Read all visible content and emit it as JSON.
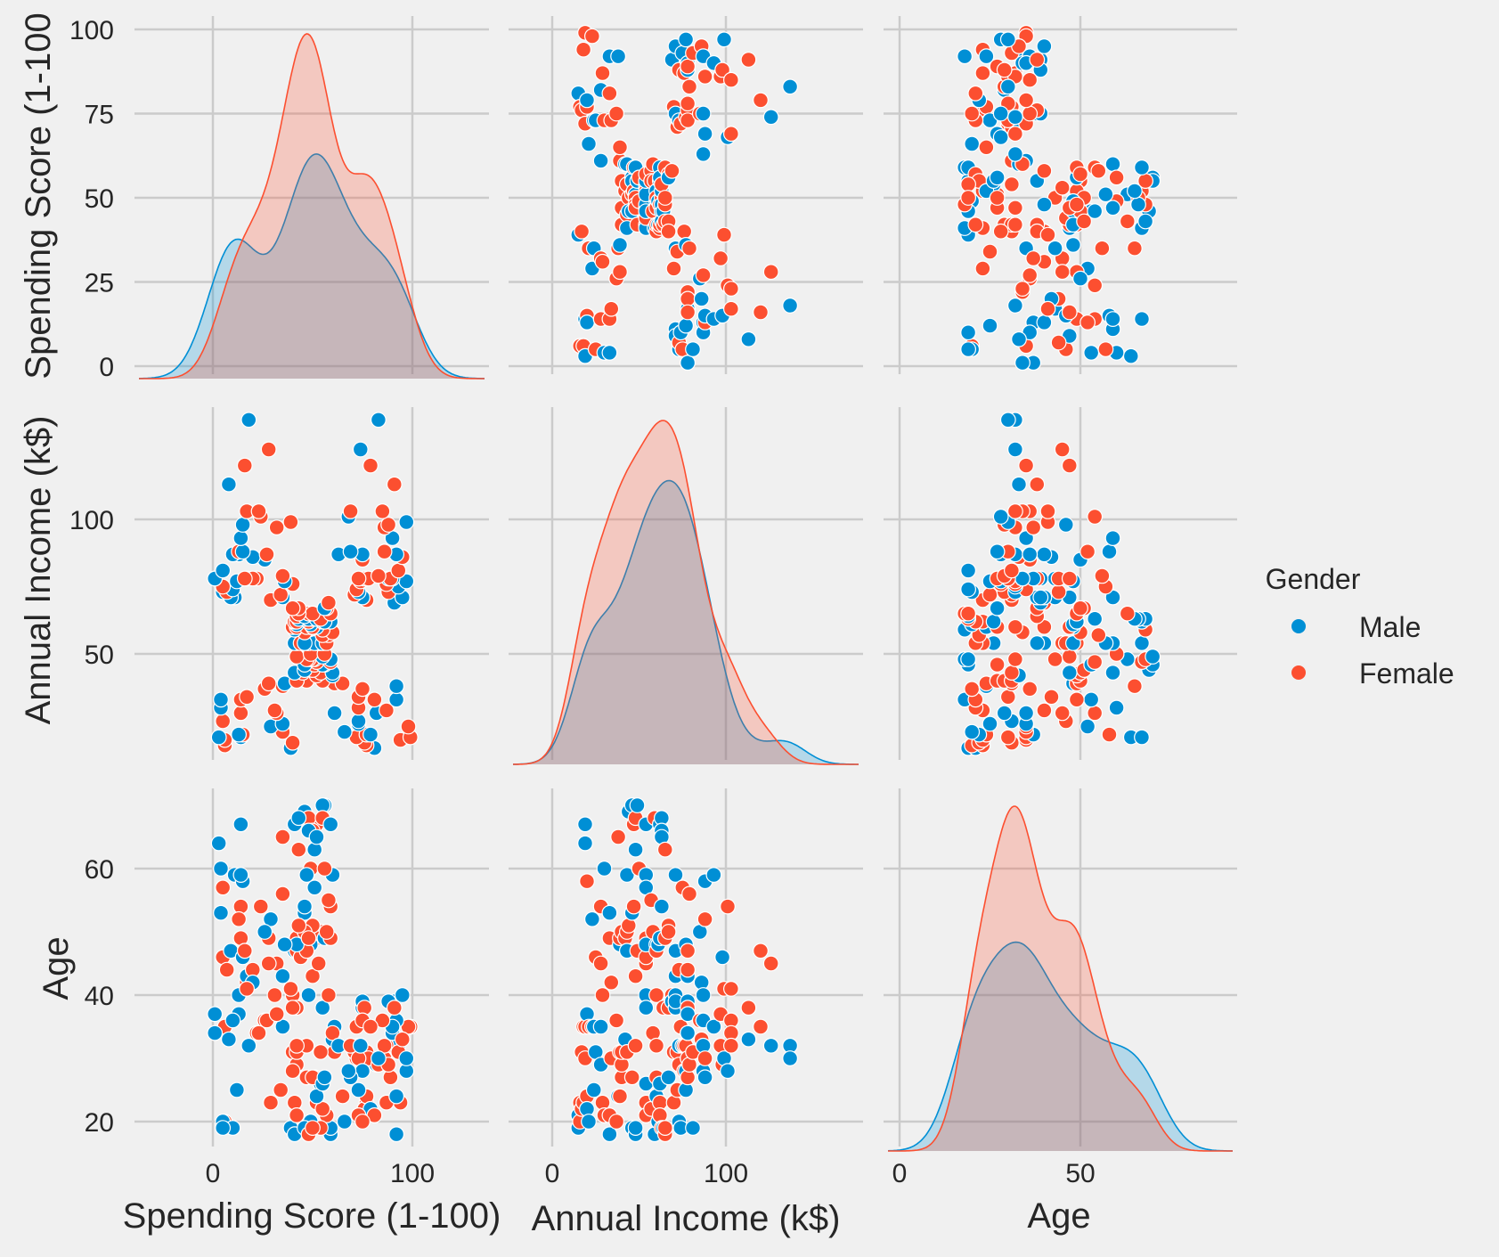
{
  "chart_data": {
    "type": "scatter",
    "kind": "pairplot",
    "variables": [
      "Spending Score (1-100)",
      "Annual Income (k$)",
      "Age"
    ],
    "diag_kind": "kde",
    "hue": "Gender",
    "legend": {
      "title": "Gender",
      "placement": "right",
      "entries": [
        {
          "label": "Male",
          "color": "#008fd5"
        },
        {
          "label": "Female",
          "color": "#fc4f30"
        }
      ]
    },
    "axes": {
      "Spending Score (1-100)": {
        "ticks": [
          0,
          25,
          50,
          75,
          100
        ],
        "xticks": [
          0,
          100
        ],
        "label": "Spending Score (1-100)",
        "ylabel_shown": "Spending Score (1-100"
      },
      "Annual Income (k$)": {
        "ticks": [
          50,
          100
        ],
        "xticks": [
          0,
          100
        ],
        "label": "Annual Income (k$)"
      },
      "Age": {
        "ticks": [
          20,
          40,
          60
        ],
        "xticks": [
          0,
          50
        ],
        "label": "Age"
      }
    },
    "grid": true,
    "columns": [
      "Gender",
      "Age",
      "Annual Income (k$)",
      "Spending Score (1-100)"
    ],
    "points": [
      [
        "Male",
        19,
        15,
        39
      ],
      [
        "Male",
        21,
        15,
        81
      ],
      [
        "Female",
        20,
        16,
        6
      ],
      [
        "Female",
        23,
        16,
        77
      ],
      [
        "Female",
        31,
        17,
        40
      ],
      [
        "Female",
        22,
        17,
        76
      ],
      [
        "Female",
        35,
        18,
        6
      ],
      [
        "Female",
        23,
        18,
        94
      ],
      [
        "Male",
        64,
        19,
        3
      ],
      [
        "Female",
        30,
        19,
        72
      ],
      [
        "Male",
        67,
        19,
        14
      ],
      [
        "Female",
        35,
        19,
        99
      ],
      [
        "Female",
        58,
        20,
        15
      ],
      [
        "Female",
        24,
        20,
        77
      ],
      [
        "Male",
        37,
        20,
        13
      ],
      [
        "Male",
        22,
        20,
        79
      ],
      [
        "Female",
        35,
        21,
        35
      ],
      [
        "Male",
        20,
        21,
        66
      ],
      [
        "Male",
        52,
        23,
        29
      ],
      [
        "Female",
        35,
        23,
        98
      ],
      [
        "Male",
        35,
        24,
        35
      ],
      [
        "Male",
        25,
        24,
        73
      ],
      [
        "Female",
        46,
        25,
        5
      ],
      [
        "Male",
        31,
        25,
        73
      ],
      [
        "Female",
        54,
        28,
        14
      ],
      [
        "Male",
        29,
        28,
        82
      ],
      [
        "Female",
        45,
        28,
        32
      ],
      [
        "Male",
        35,
        28,
        61
      ],
      [
        "Female",
        40,
        29,
        31
      ],
      [
        "Female",
        23,
        29,
        87
      ],
      [
        "Male",
        60,
        30,
        4
      ],
      [
        "Female",
        21,
        30,
        73
      ],
      [
        "Male",
        53,
        33,
        4
      ],
      [
        "Male",
        18,
        33,
        92
      ],
      [
        "Female",
        49,
        33,
        14
      ],
      [
        "Female",
        21,
        33,
        81
      ],
      [
        "Female",
        42,
        34,
        17
      ],
      [
        "Female",
        30,
        34,
        73
      ],
      [
        "Female",
        36,
        37,
        26
      ],
      [
        "Female",
        20,
        37,
        75
      ],
      [
        "Female",
        65,
        38,
        35
      ],
      [
        "Male",
        24,
        38,
        92
      ],
      [
        "Male",
        48,
        39,
        36
      ],
      [
        "Female",
        31,
        39,
        61
      ],
      [
        "Female",
        49,
        39,
        28
      ],
      [
        "Female",
        24,
        39,
        65
      ],
      [
        "Female",
        50,
        40,
        55
      ],
      [
        "Female",
        27,
        40,
        47
      ],
      [
        "Female",
        29,
        40,
        42
      ],
      [
        "Female",
        31,
        40,
        42
      ],
      [
        "Female",
        49,
        42,
        52
      ],
      [
        "Male",
        33,
        42,
        60
      ],
      [
        "Female",
        31,
        43,
        54
      ],
      [
        "Male",
        59,
        43,
        60
      ],
      [
        "Female",
        50,
        43,
        45
      ],
      [
        "Male",
        47,
        43,
        41
      ],
      [
        "Female",
        51,
        44,
        50
      ],
      [
        "Male",
        69,
        44,
        46
      ],
      [
        "Female",
        27,
        46,
        51
      ],
      [
        "Male",
        53,
        46,
        46
      ],
      [
        "Male",
        70,
        46,
        56
      ],
      [
        "Male",
        19,
        46,
        55
      ],
      [
        "Female",
        67,
        47,
        52
      ],
      [
        "Female",
        54,
        47,
        59
      ],
      [
        "Male",
        63,
        48,
        51
      ],
      [
        "Male",
        18,
        48,
        59
      ],
      [
        "Female",
        43,
        48,
        50
      ],
      [
        "Female",
        68,
        48,
        48
      ],
      [
        "Male",
        19,
        48,
        59
      ],
      [
        "Female",
        32,
        48,
        47
      ],
      [
        "Male",
        70,
        49,
        55
      ],
      [
        "Female",
        47,
        49,
        42
      ],
      [
        "Female",
        60,
        50,
        49
      ],
      [
        "Female",
        60,
        50,
        56
      ],
      [
        "Male",
        59,
        54,
        47
      ],
      [
        "Male",
        26,
        54,
        54
      ],
      [
        "Female",
        45,
        54,
        53
      ],
      [
        "Male",
        40,
        54,
        48
      ],
      [
        "Female",
        23,
        54,
        52
      ],
      [
        "Female",
        49,
        54,
        42
      ],
      [
        "Male",
        57,
        54,
        51
      ],
      [
        "Male",
        38,
        54,
        55
      ],
      [
        "Male",
        67,
        54,
        41
      ],
      [
        "Female",
        46,
        54,
        44
      ],
      [
        "Female",
        21,
        54,
        57
      ],
      [
        "Male",
        48,
        54,
        46
      ],
      [
        "Female",
        55,
        57,
        58
      ],
      [
        "Female",
        22,
        57,
        55
      ],
      [
        "Female",
        34,
        58,
        60
      ],
      [
        "Female",
        50,
        58,
        46
      ],
      [
        "Female",
        68,
        59,
        55
      ],
      [
        "Male",
        18,
        59,
        41
      ],
      [
        "Male",
        48,
        60,
        49
      ],
      [
        "Female",
        40,
        60,
        40
      ],
      [
        "Female",
        32,
        60,
        42
      ],
      [
        "Male",
        24,
        60,
        52
      ],
      [
        "Female",
        47,
        60,
        47
      ],
      [
        "Female",
        27,
        60,
        50
      ],
      [
        "Male",
        48,
        61,
        42
      ],
      [
        "Male",
        20,
        61,
        49
      ],
      [
        "Female",
        23,
        62,
        41
      ],
      [
        "Female",
        49,
        62,
        48
      ],
      [
        "Male",
        67,
        62,
        59
      ],
      [
        "Male",
        26,
        62,
        55
      ],
      [
        "Male",
        49,
        62,
        56
      ],
      [
        "Female",
        21,
        62,
        42
      ],
      [
        "Female",
        66,
        63,
        50
      ],
      [
        "Male",
        54,
        63,
        46
      ],
      [
        "Male",
        68,
        63,
        43
      ],
      [
        "Male",
        66,
        63,
        48
      ],
      [
        "Male",
        65,
        63,
        52
      ],
      [
        "Female",
        19,
        63,
        54
      ],
      [
        "Female",
        38,
        64,
        42
      ],
      [
        "Male",
        19,
        64,
        46
      ],
      [
        "Female",
        18,
        65,
        48
      ],
      [
        "Female",
        19,
        65,
        50
      ],
      [
        "Female",
        63,
        65,
        43
      ],
      [
        "Female",
        49,
        65,
        59
      ],
      [
        "Female",
        51,
        67,
        43
      ],
      [
        "Female",
        50,
        67,
        57
      ],
      [
        "Male",
        27,
        67,
        56
      ],
      [
        "Female",
        38,
        67,
        40
      ],
      [
        "Female",
        40,
        69,
        58
      ],
      [
        "Male",
        39,
        69,
        91
      ],
      [
        "Female",
        23,
        70,
        29
      ],
      [
        "Female",
        31,
        70,
        77
      ],
      [
        "Male",
        43,
        71,
        35
      ],
      [
        "Male",
        40,
        71,
        95
      ],
      [
        "Male",
        59,
        71,
        11
      ],
      [
        "Male",
        38,
        71,
        75
      ],
      [
        "Male",
        47,
        71,
        9
      ],
      [
        "Male",
        39,
        71,
        75
      ],
      [
        "Female",
        25,
        72,
        34
      ],
      [
        "Female",
        31,
        72,
        71
      ],
      [
        "Male",
        20,
        73,
        5
      ],
      [
        "Female",
        29,
        73,
        88
      ],
      [
        "Female",
        44,
        73,
        7
      ],
      [
        "Male",
        32,
        73,
        73
      ],
      [
        "Male",
        19,
        74,
        10
      ],
      [
        "Female",
        35,
        74,
        72
      ],
      [
        "Female",
        57,
        75,
        5
      ],
      [
        "Male",
        32,
        75,
        93
      ],
      [
        "Female",
        28,
        76,
        40
      ],
      [
        "Female",
        32,
        76,
        87
      ],
      [
        "Male",
        25,
        77,
        12
      ],
      [
        "Male",
        28,
        77,
        97
      ],
      [
        "Male",
        48,
        77,
        36
      ],
      [
        "Female",
        32,
        77,
        74
      ],
      [
        "Female",
        34,
        78,
        22
      ],
      [
        "Male",
        34,
        78,
        90
      ],
      [
        "Male",
        43,
        78,
        17
      ],
      [
        "Male",
        39,
        78,
        88
      ],
      [
        "Female",
        44,
        78,
        20
      ],
      [
        "Female",
        38,
        78,
        76
      ],
      [
        "Female",
        47,
        78,
        16
      ],
      [
        "Female",
        27,
        78,
        89
      ],
      [
        "Male",
        37,
        78,
        1
      ],
      [
        "Female",
        30,
        78,
        78
      ],
      [
        "Male",
        34,
        78,
        1
      ],
      [
        "Female",
        30,
        78,
        73
      ],
      [
        "Female",
        56,
        79,
        35
      ],
      [
        "Female",
        29,
        79,
        83
      ],
      [
        "Male",
        19,
        81,
        5
      ],
      [
        "Female",
        31,
        81,
        93
      ],
      [
        "Male",
        50,
        85,
        26
      ],
      [
        "Female",
        36,
        85,
        75
      ],
      [
        "Male",
        42,
        86,
        20
      ],
      [
        "Female",
        33,
        86,
        95
      ],
      [
        "Female",
        36,
        87,
        27
      ],
      [
        "Male",
        32,
        87,
        63
      ],
      [
        "Male",
        40,
        87,
        13
      ],
      [
        "Male",
        28,
        87,
        75
      ],
      [
        "Male",
        36,
        87,
        10
      ],
      [
        "Male",
        36,
        87,
        92
      ],
      [
        "Female",
        52,
        88,
        13
      ],
      [
        "Female",
        30,
        88,
        86
      ],
      [
        "Male",
        58,
        88,
        15
      ],
      [
        "Male",
        27,
        88,
        69
      ],
      [
        "Male",
        59,
        93,
        14
      ],
      [
        "Male",
        35,
        93,
        90
      ],
      [
        "Female",
        37,
        97,
        32
      ],
      [
        "Female",
        32,
        97,
        86
      ],
      [
        "Male",
        46,
        98,
        15
      ],
      [
        "Female",
        29,
        98,
        88
      ],
      [
        "Female",
        41,
        99,
        39
      ],
      [
        "Male",
        30,
        99,
        97
      ],
      [
        "Female",
        54,
        101,
        24
      ],
      [
        "Male",
        28,
        101,
        68
      ],
      [
        "Female",
        41,
        103,
        17
      ],
      [
        "Female",
        36,
        103,
        85
      ],
      [
        "Female",
        34,
        103,
        23
      ],
      [
        "Female",
        32,
        103,
        69
      ],
      [
        "Male",
        33,
        113,
        8
      ],
      [
        "Female",
        38,
        113,
        91
      ],
      [
        "Female",
        47,
        120,
        16
      ],
      [
        "Female",
        35,
        120,
        79
      ],
      [
        "Female",
        45,
        126,
        28
      ],
      [
        "Male",
        32,
        126,
        74
      ],
      [
        "Male",
        32,
        137,
        18
      ],
      [
        "Male",
        30,
        137,
        83
      ]
    ]
  }
}
